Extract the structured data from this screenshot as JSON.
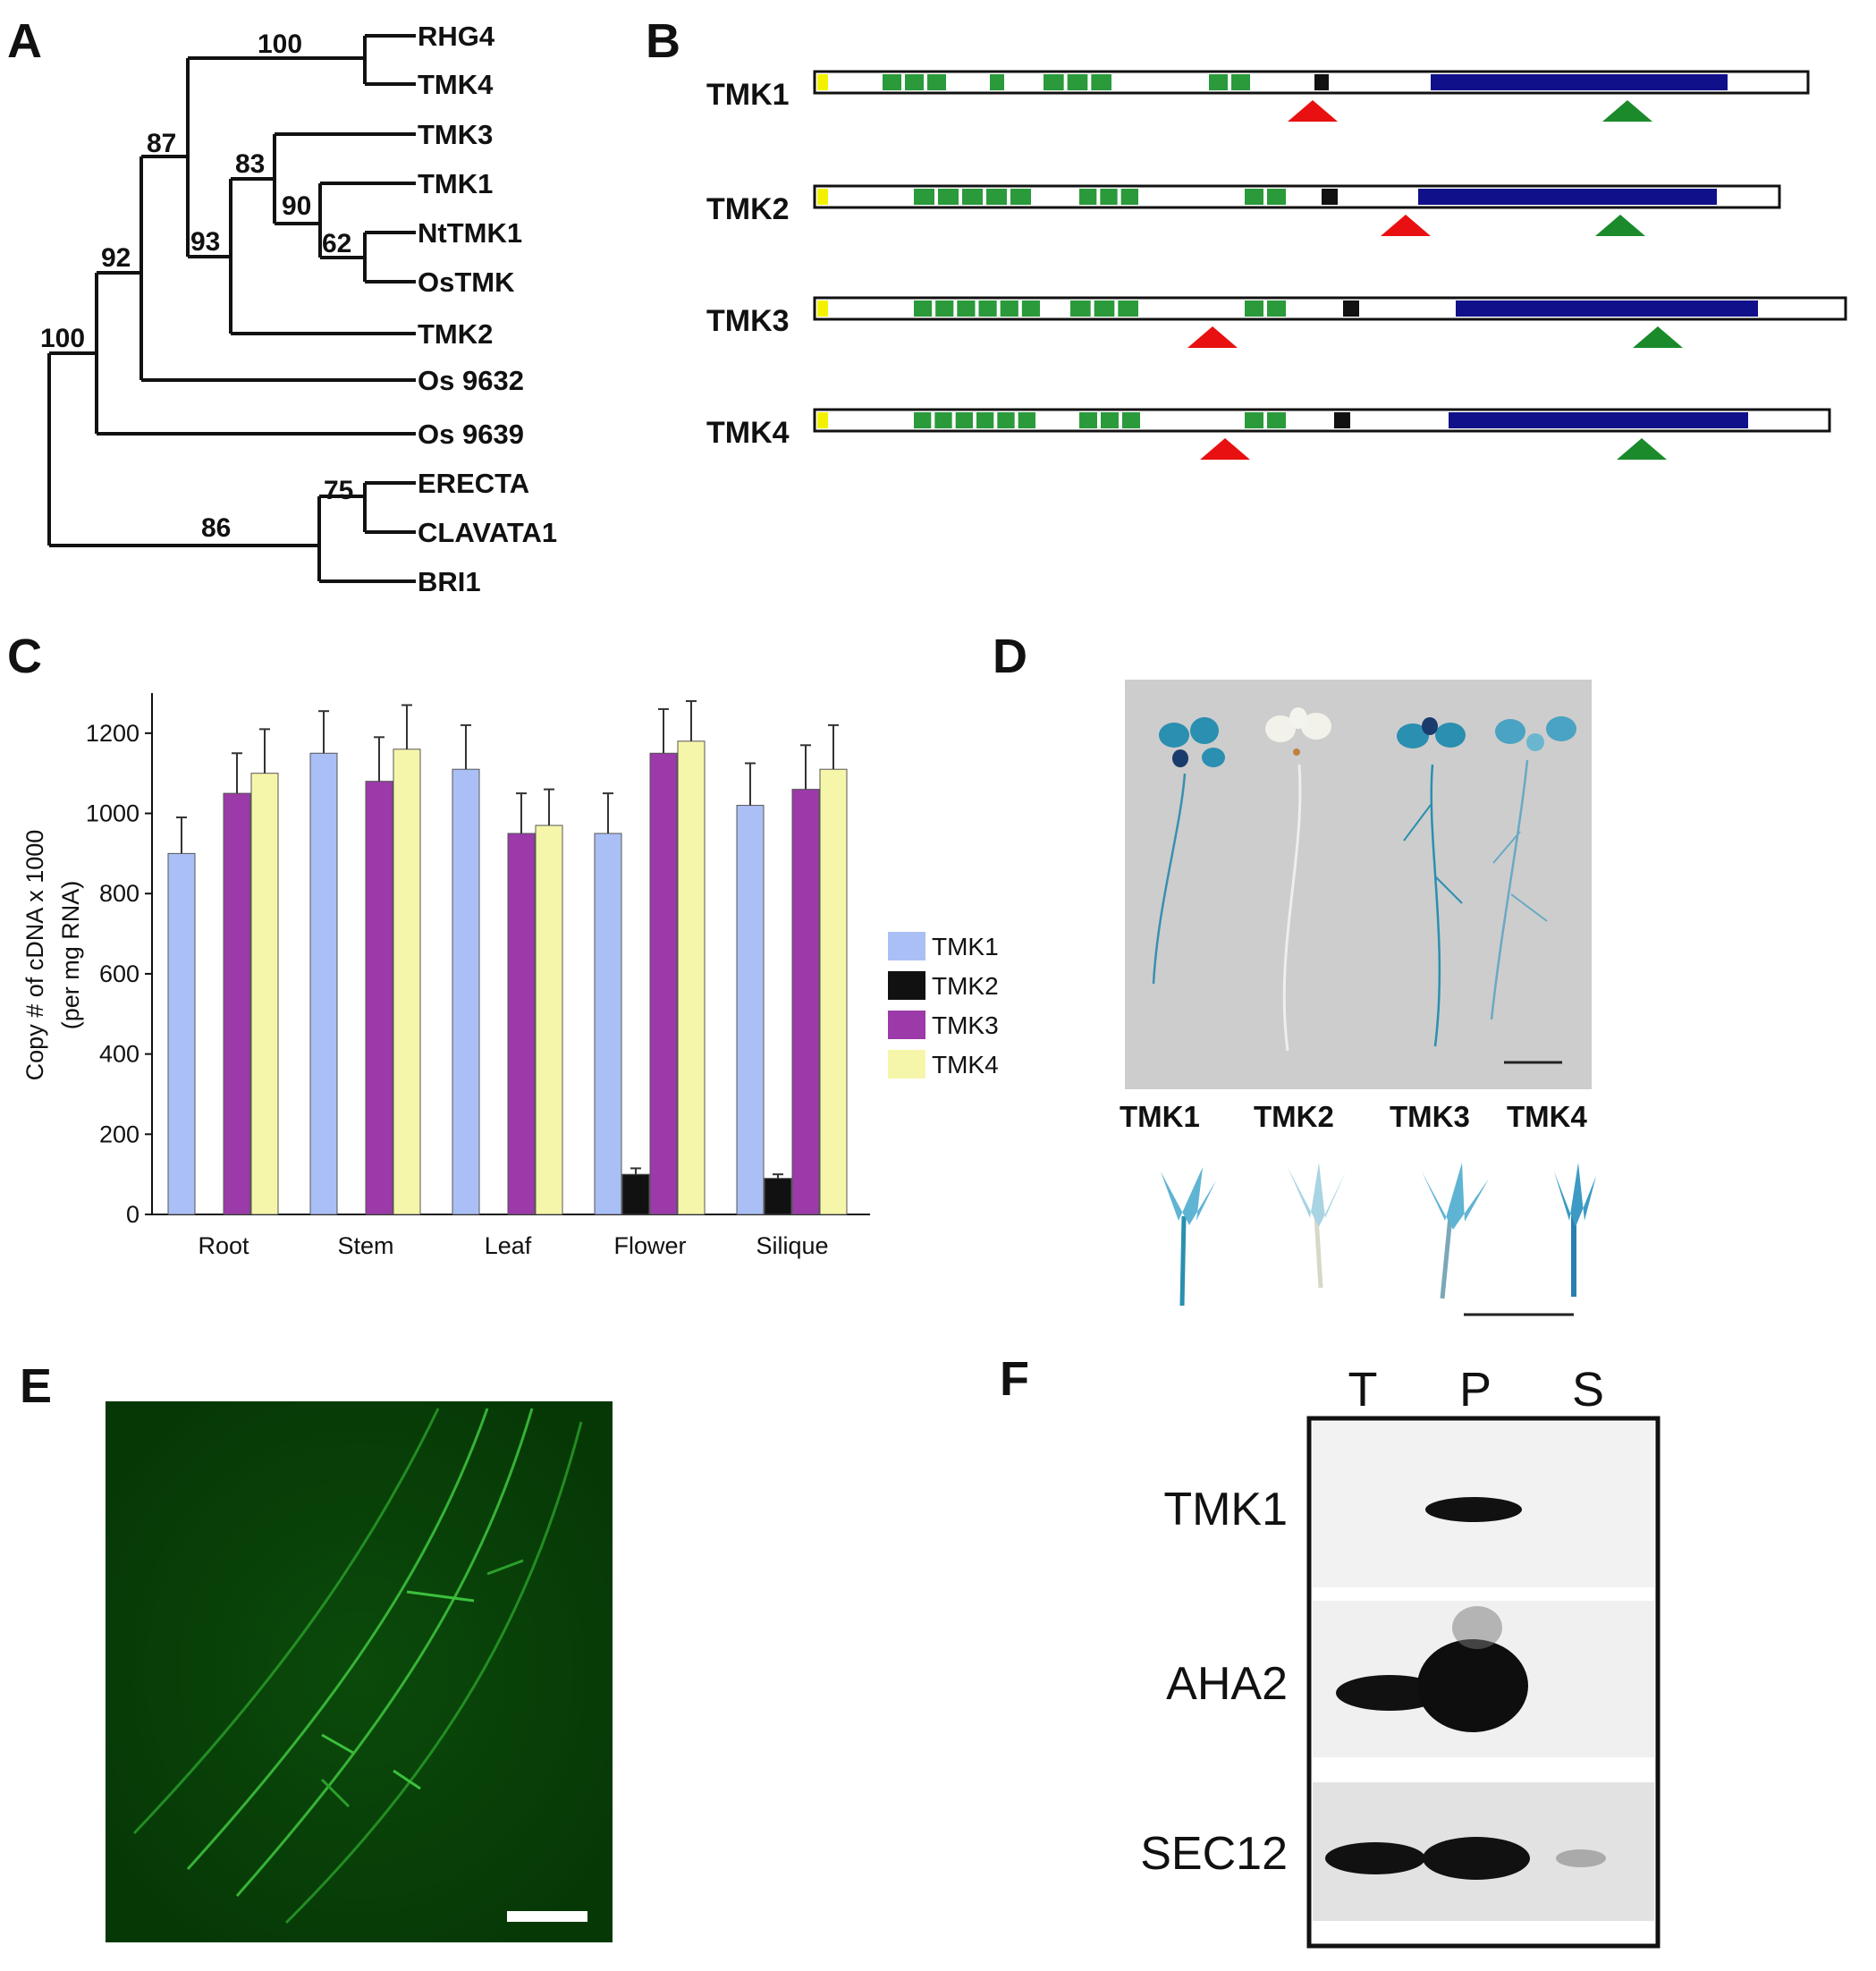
{
  "panels": {
    "A": "A",
    "B": "B",
    "C": "C",
    "D": "D",
    "E": "E",
    "F": "F"
  },
  "tree": {
    "leaves": [
      {
        "id": "RHG4",
        "label": "RHG4"
      },
      {
        "id": "TMK4",
        "label": "TMK4"
      },
      {
        "id": "TMK3",
        "label": "TMK3"
      },
      {
        "id": "TMK1",
        "label": "TMK1"
      },
      {
        "id": "NtTMK1",
        "label": "NtTMK1"
      },
      {
        "id": "OsTMK",
        "label": "OsTMK"
      },
      {
        "id": "TMK2",
        "label": "TMK2"
      },
      {
        "id": "Os9632",
        "label": "Os 9632"
      },
      {
        "id": "Os9639",
        "label": "Os 9639"
      },
      {
        "id": "ERECTA",
        "label": "ERECTA"
      },
      {
        "id": "CLAVATA1",
        "label": "CLAVATA1"
      },
      {
        "id": "BRI1",
        "label": "BRI1"
      }
    ],
    "bootstraps": [
      "100",
      "87",
      "83",
      "90",
      "62",
      "93",
      "92",
      "100",
      "75",
      "86"
    ]
  },
  "domains": {
    "proteins": [
      {
        "name": "TMK1"
      },
      {
        "name": "TMK2"
      },
      {
        "name": "TMK3"
      },
      {
        "name": "TMK4"
      }
    ],
    "colors": {
      "signal": "#f2f200",
      "lrr": "#2a9a3a",
      "tm": "#111111",
      "kinase": "#10108a",
      "cleave_red": "#e81010",
      "cleave_green": "#1a8a2a"
    }
  },
  "chart_data": {
    "type": "bar",
    "categories": [
      "Root",
      "Stem",
      "Leaf",
      "Flower",
      "Silique"
    ],
    "ylabel": "Copy # of cDNA  x 1000 (per mg RNA)",
    "ylabel_line1": "Copy # of cDNA  x 1000",
    "ylabel_line2": "(per mg RNA)",
    "ylim": [
      0,
      1300
    ],
    "yticks": [
      "0",
      "200",
      "400",
      "600",
      "800",
      "1000",
      "1200"
    ],
    "legend_placement": "right",
    "series": [
      {
        "name": "TMK1",
        "color": "#aabff5",
        "values": [
          900,
          1150,
          1110,
          950,
          1020
        ],
        "errors": [
          90,
          105,
          110,
          100,
          105
        ]
      },
      {
        "name": "TMK2",
        "color": "#111111",
        "values": [
          0,
          0,
          0,
          100,
          90
        ],
        "errors": [
          0,
          0,
          0,
          15,
          10
        ]
      },
      {
        "name": "TMK3",
        "color": "#9b3aa8",
        "values": [
          1050,
          1080,
          950,
          1150,
          1060
        ],
        "errors": [
          100,
          110,
          100,
          110,
          110
        ]
      },
      {
        "name": "TMK4",
        "color": "#f6f6aa",
        "values": [
          1100,
          1160,
          970,
          1180,
          1110
        ],
        "errors": [
          110,
          110,
          90,
          100,
          110
        ]
      }
    ]
  },
  "seedlings": {
    "labels": [
      "TMK1",
      "TMK2",
      "TMK3",
      "TMK4"
    ]
  },
  "blot": {
    "lanes": [
      "T",
      "P",
      "S"
    ],
    "rows": [
      "TMK1",
      "AHA2",
      "SEC12"
    ]
  }
}
